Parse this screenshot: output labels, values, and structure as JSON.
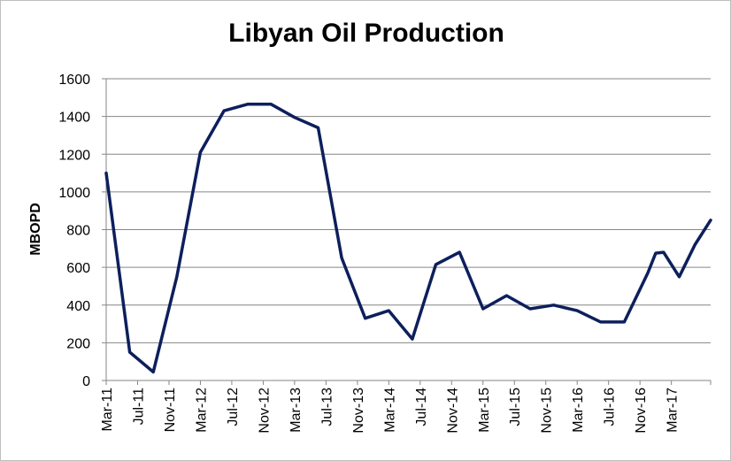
{
  "chart_data": {
    "type": "line",
    "title": "Libyan Oil Production",
    "xlabel": "",
    "ylabel": "MBOPD",
    "ylim": [
      0,
      1600
    ],
    "yticks": [
      0,
      200,
      400,
      600,
      800,
      1000,
      1200,
      1400,
      1600
    ],
    "x_range": [
      "2011-03",
      "2017-08"
    ],
    "xtick_labels": [
      "Mar-11",
      "Jul-11",
      "Nov-11",
      "Mar-12",
      "Jul-12",
      "Nov-12",
      "Mar-13",
      "Jul-13",
      "Nov-13",
      "Mar-14",
      "Jul-14",
      "Nov-14",
      "Mar-15",
      "Jul-15",
      "Nov-15",
      "Mar-16",
      "Jul-16",
      "Nov-16",
      "Mar-17"
    ],
    "grid": true,
    "legend": "none",
    "line_color": "#0d1f5c",
    "series": [
      {
        "points": [
          [
            "2011-03",
            1100
          ],
          [
            "2011-06",
            150
          ],
          [
            "2011-09",
            45
          ],
          [
            "2011-12",
            550
          ],
          [
            "2012-03",
            1210
          ],
          [
            "2012-06",
            1430
          ],
          [
            "2012-09",
            1465
          ],
          [
            "2012-12",
            1465
          ],
          [
            "2013-03",
            1395
          ],
          [
            "2013-06",
            1340
          ],
          [
            "2013-09",
            650
          ],
          [
            "2013-12",
            330
          ],
          [
            "2014-03",
            370
          ],
          [
            "2014-06",
            220
          ],
          [
            "2014-09",
            615
          ],
          [
            "2014-12",
            680
          ],
          [
            "2015-03",
            380
          ],
          [
            "2015-06",
            450
          ],
          [
            "2015-09",
            380
          ],
          [
            "2015-12",
            400
          ],
          [
            "2016-03",
            370
          ],
          [
            "2016-06",
            310
          ],
          [
            "2016-09",
            310
          ],
          [
            "2016-12",
            570
          ],
          [
            "2017-01",
            675
          ],
          [
            "2017-02",
            680
          ],
          [
            "2017-04",
            550
          ],
          [
            "2017-06",
            720
          ],
          [
            "2017-08",
            850
          ]
        ]
      }
    ]
  }
}
